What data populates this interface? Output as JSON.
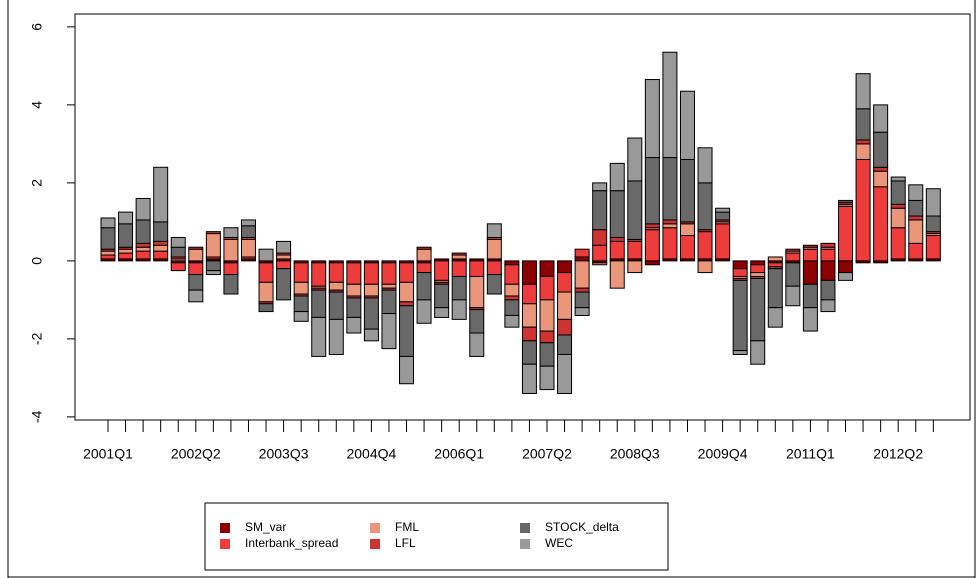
{
  "chart_data": {
    "type": "bar",
    "stacked": true,
    "legend": "bottom",
    "categories": [
      "2001Q1",
      null,
      null,
      null,
      null,
      "2002Q2",
      null,
      null,
      null,
      null,
      "2003Q3",
      null,
      null,
      null,
      null,
      "2004Q4",
      null,
      null,
      null,
      null,
      "2006Q1",
      null,
      null,
      null,
      null,
      "2007Q2",
      null,
      null,
      null,
      null,
      "2008Q3",
      null,
      null,
      null,
      null,
      "2009Q4",
      null,
      null,
      null,
      null,
      "2011Q1",
      null,
      null,
      null,
      null,
      "2012Q2",
      null,
      null
    ],
    "ylim": [
      -4.08,
      6.33
    ],
    "yticks": [
      -4,
      -2,
      0,
      2,
      4,
      6
    ],
    "series": [
      {
        "name": "SM_var",
        "color": "#8b0000",
        "values": [
          0.05,
          0.05,
          0.05,
          0.05,
          -0.05,
          -0.05,
          0.05,
          -0.05,
          0.05,
          -0.05,
          0.05,
          -0.05,
          -0.05,
          -0.05,
          -0.05,
          -0.05,
          -0.05,
          -0.05,
          -0.05,
          0.05,
          0.05,
          0.05,
          0.05,
          -0.1,
          -0.6,
          -0.4,
          -0.3,
          0.1,
          -0.05,
          0.05,
          0.05,
          -0.1,
          0.05,
          0.05,
          0.05,
          0.05,
          -0.2,
          -0.1,
          -0.05,
          -0.05,
          -0.6,
          -0.5,
          -0.3,
          -0.05,
          -0.05,
          0.05,
          0.05,
          0.05
        ]
      },
      {
        "name": "Interbank_spread",
        "color": "#ee3b3b",
        "values": [
          0.1,
          0.15,
          0.2,
          0.2,
          -0.2,
          -0.3,
          0.05,
          -0.3,
          0.05,
          -0.5,
          -0.2,
          -0.5,
          -0.6,
          -0.5,
          -0.55,
          -0.55,
          -0.55,
          -0.5,
          -0.25,
          -0.5,
          -0.4,
          -0.4,
          -0.35,
          -0.5,
          -0.5,
          -0.6,
          -0.5,
          0.2,
          0.4,
          0.45,
          0.45,
          0.8,
          0.8,
          0.6,
          0.7,
          0.9,
          -0.2,
          -0.2,
          -0.1,
          0.2,
          0.3,
          0.3,
          1.4,
          2.6,
          1.9,
          0.8,
          0.4,
          0.6
        ]
      },
      {
        "name": "FML",
        "color": "#e9967a",
        "values": [
          0.1,
          0.1,
          0.1,
          0.15,
          0.05,
          0.3,
          0.6,
          0.55,
          0.45,
          -0.5,
          0.1,
          -0.3,
          -0.05,
          -0.2,
          -0.3,
          -0.3,
          -0.1,
          -0.5,
          0.3,
          -0.05,
          0.1,
          -0.8,
          0.5,
          -0.3,
          -0.6,
          -0.8,
          -0.7,
          -0.7,
          -0.05,
          -0.7,
          -0.3,
          0.05,
          0.1,
          0.3,
          -0.3,
          0.05,
          -0.05,
          -0.1,
          0.1,
          0.05,
          0.05,
          0.05,
          0.05,
          0.4,
          0.4,
          0.5,
          0.6,
          0.05
        ]
      },
      {
        "name": "LFL",
        "color": "#cd3333",
        "values": [
          0.05,
          0.05,
          0.1,
          0.1,
          0.05,
          0.05,
          0.05,
          0.05,
          0.05,
          -0.05,
          0.05,
          -0.05,
          -0.05,
          -0.05,
          -0.05,
          -0.05,
          -0.05,
          -0.1,
          0.05,
          -0.05,
          0.05,
          -0.05,
          0.05,
          -0.1,
          -0.35,
          -0.3,
          -0.4,
          -0.1,
          0.4,
          0.1,
          0.05,
          0.1,
          0.1,
          0.05,
          0.05,
          0.05,
          -0.05,
          -0.05,
          -0.05,
          0.05,
          0.05,
          0.1,
          0.05,
          0.1,
          0.1,
          0.1,
          0.1,
          0.05
        ]
      },
      {
        "name": "STOCK_delta",
        "color": "#696969",
        "values": [
          0.55,
          0.6,
          0.6,
          0.5,
          0.25,
          -0.4,
          -0.25,
          -0.5,
          0.3,
          -0.2,
          -0.8,
          -0.4,
          -0.7,
          -0.7,
          -0.5,
          -0.8,
          -0.6,
          -1.3,
          -0.7,
          -0.6,
          -0.6,
          -0.6,
          -0.5,
          -0.4,
          -0.6,
          -0.6,
          -0.5,
          -0.4,
          1.0,
          1.2,
          1.5,
          1.7,
          1.6,
          1.6,
          1.2,
          0.2,
          -1.8,
          -1.6,
          -1.0,
          -0.6,
          -0.6,
          -0.5,
          0.05,
          0.8,
          0.9,
          0.6,
          0.4,
          0.4
        ]
      },
      {
        "name": "WEC",
        "color": "#999999",
        "values": [
          0.25,
          0.3,
          0.55,
          1.4,
          0.25,
          -0.3,
          -0.1,
          0.25,
          0.15,
          0.3,
          0.3,
          -0.25,
          -1.0,
          -0.9,
          -0.4,
          -0.3,
          -0.9,
          -0.7,
          -0.6,
          -0.25,
          -0.5,
          -0.6,
          0.35,
          -0.3,
          -0.75,
          -0.6,
          -1.0,
          -0.2,
          0.2,
          0.7,
          1.1,
          2.0,
          2.7,
          1.75,
          0.9,
          0.1,
          -0.1,
          -0.6,
          -0.5,
          -0.5,
          -0.6,
          -0.3,
          -0.2,
          0.9,
          0.7,
          0.1,
          0.4,
          0.7
        ]
      }
    ]
  }
}
